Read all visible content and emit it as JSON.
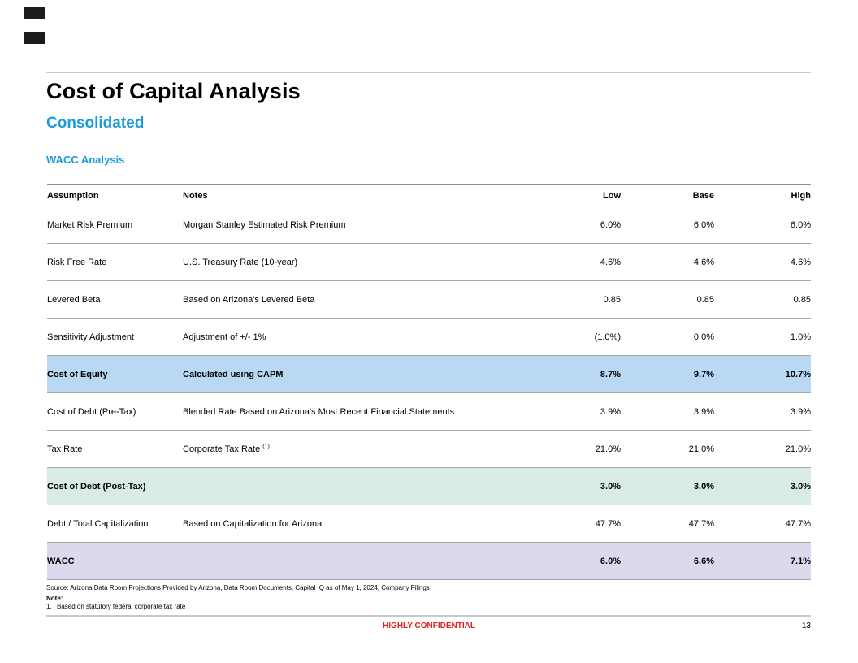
{
  "page": {
    "title": "Cost of Capital Analysis",
    "subtitle": "Consolidated",
    "section_heading": "WACC Analysis",
    "source_line": "Source: Arizona Data Room Projections Provided by Arizona, Data Room Documents, Capital IQ as of May 1, 2024, Company Filings",
    "note_label": "Note:",
    "note_1_marker": "1.",
    "note_1_text": "Based on statutory federal corporate tax rate",
    "confidential_label": "HIGHLY CONFIDENTIAL",
    "page_number": "13"
  },
  "colors": {
    "accent_cyan": "#1a9cd8",
    "confidential_red": "#e02222",
    "highlight_blue": "#b9d8f4",
    "highlight_mint": "#d9ece3",
    "highlight_lavender": "#dbd9ec"
  },
  "table": {
    "columns": [
      "Assumption",
      "Notes",
      "Low",
      "Base",
      "High"
    ],
    "rows": [
      {
        "assumption": "Market Risk Premium",
        "notes": "Morgan Stanley Estimated Risk Premium",
        "low": "6.0%",
        "base": "6.0%",
        "high": "6.0%",
        "highlight": "none"
      },
      {
        "assumption": "Risk Free Rate",
        "notes": "U.S. Treasury Rate (10-year)",
        "low": "4.6%",
        "base": "4.6%",
        "high": "4.6%",
        "highlight": "none"
      },
      {
        "assumption": "Levered Beta",
        "notes": "Based on Arizona's Levered Beta",
        "low": "0.85",
        "base": "0.85",
        "high": "0.85",
        "highlight": "none"
      },
      {
        "assumption": "Sensitivity Adjustment",
        "notes": "Adjustment of +/- 1%",
        "low": "(1.0%)",
        "base": "0.0%",
        "high": "1.0%",
        "highlight": "none"
      },
      {
        "assumption": "Cost of Equity",
        "notes": "Calculated using CAPM",
        "low": "8.7%",
        "base": "9.7%",
        "high": "10.7%",
        "highlight": "blue"
      },
      {
        "assumption": "Cost of Debt (Pre-Tax)",
        "notes": "Blended Rate Based on Arizona's Most Recent Financial Statements",
        "low": "3.9%",
        "base": "3.9%",
        "high": "3.9%",
        "highlight": "none"
      },
      {
        "assumption": "Tax Rate",
        "notes": "Corporate Tax Rate",
        "notes_sup": "(1)",
        "low": "21.0%",
        "base": "21.0%",
        "high": "21.0%",
        "highlight": "none"
      },
      {
        "assumption": "Cost of Debt (Post-Tax)",
        "notes": "",
        "low": "3.0%",
        "base": "3.0%",
        "high": "3.0%",
        "highlight": "mint"
      },
      {
        "assumption": "Debt / Total Capitalization",
        "notes": "Based on Capitalization for Arizona",
        "low": "47.7%",
        "base": "47.7%",
        "high": "47.7%",
        "highlight": "none"
      },
      {
        "assumption": "WACC",
        "notes": "",
        "low": "6.0%",
        "base": "6.6%",
        "high": "7.1%",
        "highlight": "lavender"
      }
    ]
  }
}
